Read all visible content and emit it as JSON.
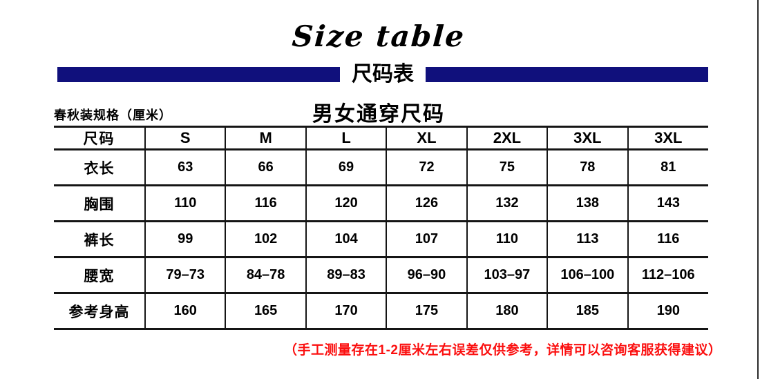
{
  "header": {
    "script_title": "Size table",
    "banner_title": "尺码表",
    "spec_label": "春秋装规格（厘米）",
    "table_title": "男女通穿尺码"
  },
  "colors": {
    "banner_navy": "#10107c",
    "note_red": "#fb0f0f",
    "line_black": "#151515"
  },
  "size_table": {
    "header_row": [
      "尺码",
      "S",
      "M",
      "L",
      "XL",
      "2XL",
      "3XL",
      "3XL"
    ],
    "rows": [
      {
        "label": "衣长",
        "values": [
          "63",
          "66",
          "69",
          "72",
          "75",
          "78",
          "81"
        ]
      },
      {
        "label": "胸围",
        "values": [
          "110",
          "116",
          "120",
          "126",
          "132",
          "138",
          "143"
        ]
      },
      {
        "label": "裤长",
        "values": [
          "99",
          "102",
          "104",
          "107",
          "110",
          "113",
          "116"
        ]
      },
      {
        "label": "腰宽",
        "values": [
          "79–73",
          "84–78",
          "89–83",
          "96–90",
          "103–97",
          "106–100",
          "112–106"
        ]
      },
      {
        "label": "参考身高",
        "values": [
          "160",
          "165",
          "170",
          "175",
          "180",
          "185",
          "190"
        ]
      }
    ]
  },
  "footnote": "（手工测量存在1-2厘米左右误差仅供参考，详情可以咨询客服获得建议）"
}
